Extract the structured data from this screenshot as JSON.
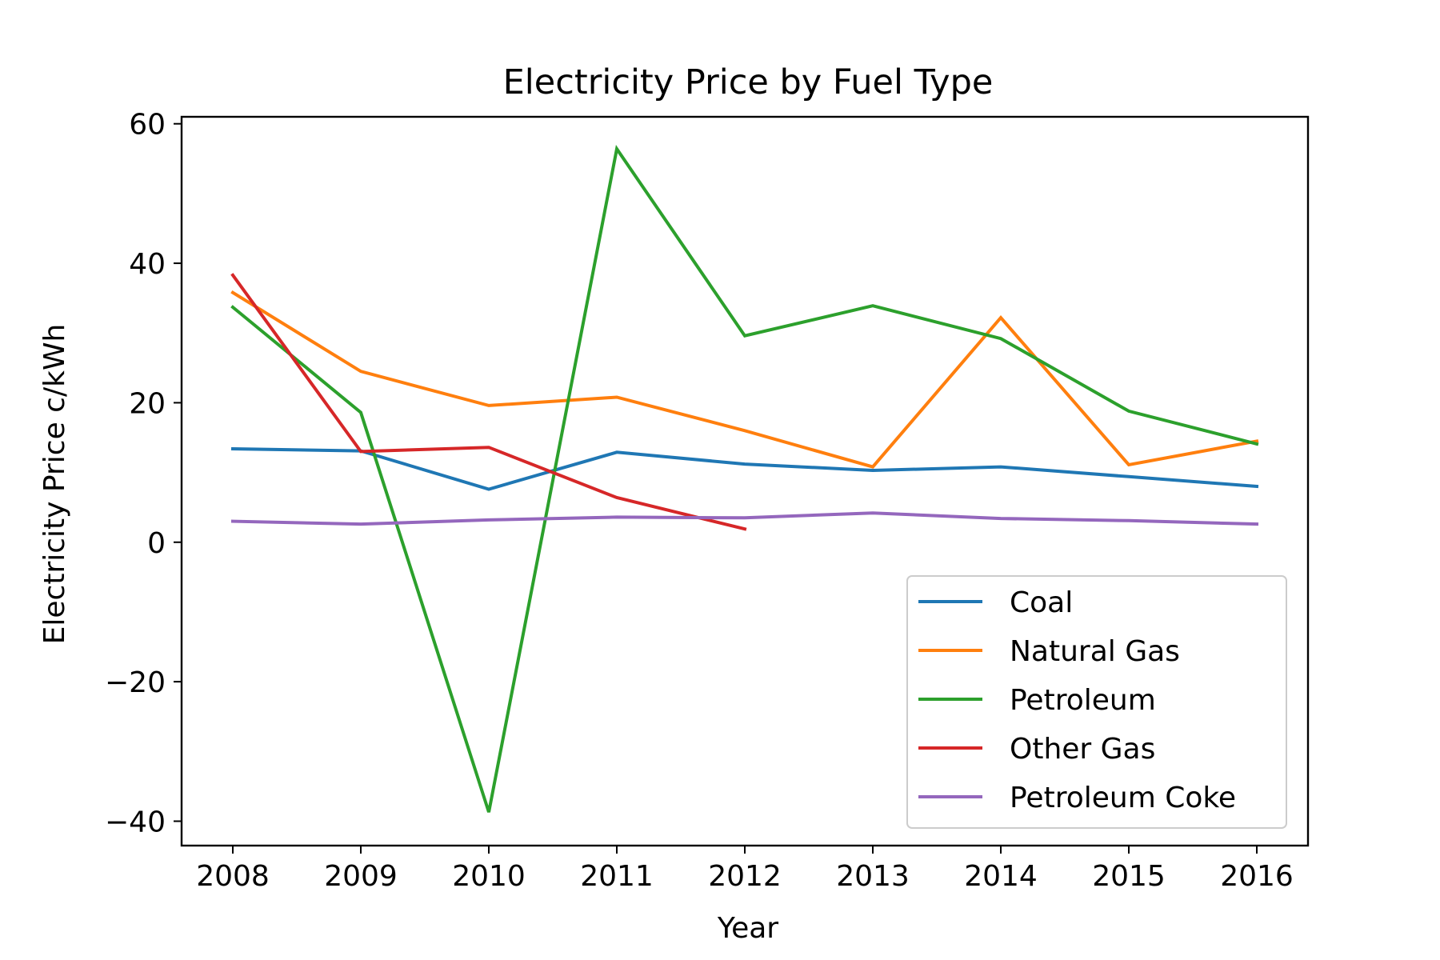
{
  "chart_data": {
    "type": "line",
    "title": "Electricity Price by Fuel Type",
    "xlabel": "Year",
    "ylabel": "Electricity Price c/kWh",
    "x": [
      2008,
      2009,
      2010,
      2011,
      2012,
      2013,
      2014,
      2015,
      2016
    ],
    "xticks": [
      "2008",
      "2009",
      "2010",
      "2011",
      "2012",
      "2013",
      "2014",
      "2015",
      "2016"
    ],
    "yticks": [
      {
        "value": 60,
        "label": "60"
      },
      {
        "value": 40,
        "label": "40"
      },
      {
        "value": 20,
        "label": "20"
      },
      {
        "value": 0,
        "label": "0"
      },
      {
        "value": -20,
        "label": "−20"
      },
      {
        "value": -40,
        "label": "−40"
      }
    ],
    "xlim": [
      2007.6,
      2016.4
    ],
    "ylim": [
      -43.5,
      61.0
    ],
    "grid": false,
    "legend_position": "lower-right",
    "series": [
      {
        "name": "Coal",
        "color": "#1f77b4",
        "x": [
          2008,
          2009,
          2010,
          2011,
          2012,
          2013,
          2014,
          2015,
          2016
        ],
        "values": [
          13.4,
          13.1,
          7.6,
          12.9,
          11.2,
          10.3,
          10.8,
          9.4,
          8.0
        ]
      },
      {
        "name": "Natural Gas",
        "color": "#ff7f0e",
        "x": [
          2008,
          2009,
          2010,
          2011,
          2012,
          2013,
          2014,
          2015,
          2016
        ],
        "values": [
          35.8,
          24.5,
          19.6,
          20.8,
          16.0,
          10.8,
          32.2,
          11.1,
          14.5
        ]
      },
      {
        "name": "Petroleum",
        "color": "#2ca02c",
        "x": [
          2008,
          2009,
          2010,
          2011,
          2012,
          2013,
          2014,
          2015,
          2016
        ],
        "values": [
          33.7,
          18.6,
          -38.7,
          56.4,
          29.6,
          33.9,
          29.2,
          18.8,
          14.1
        ]
      },
      {
        "name": "Other Gas",
        "color": "#d62728",
        "x": [
          2008,
          2009,
          2010,
          2011,
          2012
        ],
        "values": [
          38.3,
          13.0,
          13.6,
          6.4,
          1.9
        ]
      },
      {
        "name": "Petroleum Coke",
        "color": "#9467bd",
        "x": [
          2008,
          2009,
          2010,
          2011,
          2012,
          2013,
          2014,
          2015,
          2016
        ],
        "values": [
          3.0,
          2.6,
          3.2,
          3.6,
          3.5,
          4.2,
          3.4,
          3.1,
          2.6
        ]
      }
    ]
  }
}
